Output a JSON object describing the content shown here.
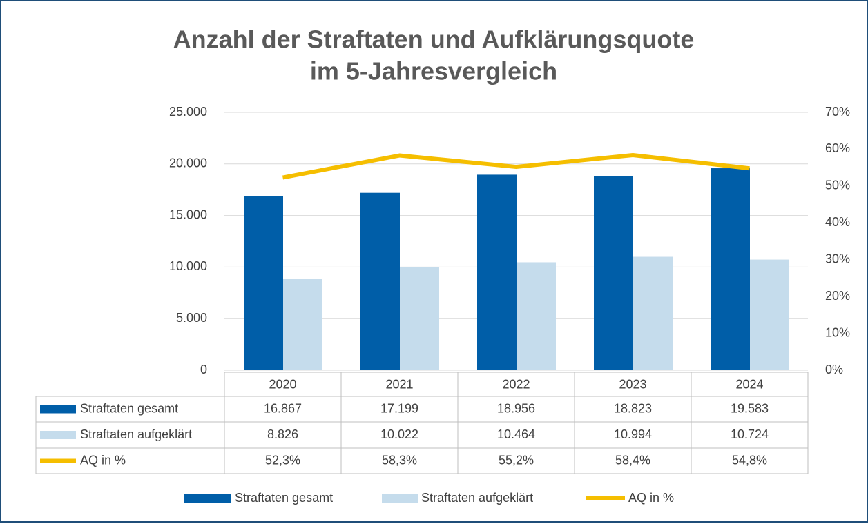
{
  "chart_data": {
    "type": "bar",
    "title": [
      "Anzahl der Straftaten und Aufklärungsquote",
      "im 5-Jahresvergleich"
    ],
    "categories": [
      "2020",
      "2021",
      "2022",
      "2023",
      "2024"
    ],
    "series": [
      {
        "name": "Straftaten gesamt",
        "color": "#005ea8",
        "values": [
          16867,
          17199,
          18956,
          18823,
          19583
        ],
        "value_labels": [
          "16.867",
          "17.199",
          "18.956",
          "18.823",
          "19.583"
        ]
      },
      {
        "name": "Straftaten aufgeklärt",
        "color": "#c5dcec",
        "values": [
          8826,
          10022,
          10464,
          10994,
          10724
        ],
        "value_labels": [
          "8.826",
          "10.022",
          "10.464",
          "10.994",
          "10.724"
        ]
      },
      {
        "name": "AQ in %",
        "type": "line",
        "axis": "y2",
        "color": "#f5be00",
        "values": [
          52.3,
          58.3,
          55.2,
          58.4,
          54.8
        ],
        "value_labels": [
          "52,3%",
          "58,3%",
          "55,2%",
          "58,4%",
          "54,8%"
        ]
      }
    ],
    "ylim": [
      0,
      25000
    ],
    "yticks": [
      0,
      {
        "value": 5000,
        "label": "5.000"
      },
      {
        "value": 10000,
        "label": "10.000"
      },
      {
        "value": 15000,
        "label": "15.000"
      },
      {
        "value": 20000,
        "label": "20.000"
      },
      {
        "value": 25000,
        "label": "25.000"
      }
    ],
    "y2lim": [
      0,
      70
    ],
    "y2ticks": [
      {
        "value": 0,
        "label": "0%"
      },
      {
        "value": 10,
        "label": "10%"
      },
      {
        "value": 20,
        "label": "20%"
      },
      {
        "value": 30,
        "label": "30%"
      },
      {
        "value": 40,
        "label": "40%"
      },
      {
        "value": 50,
        "label": "50%"
      },
      {
        "value": 60,
        "label": "60%"
      },
      {
        "value": 70,
        "label": "70%"
      }
    ],
    "grid": true,
    "legend": "bottom"
  }
}
